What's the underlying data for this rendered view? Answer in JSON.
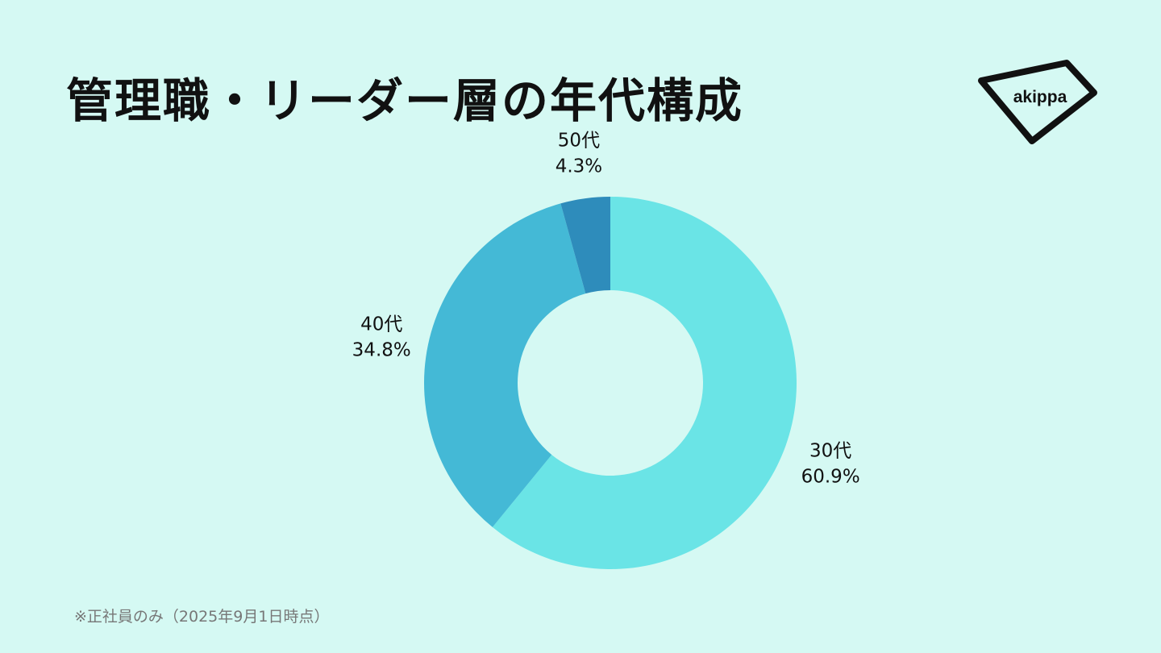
{
  "title": "管理職・リーダー層の年代構成",
  "logo_text": "akippa",
  "footnote": "※正社員のみ（2025年9月1日時点）",
  "chart_data": {
    "type": "pie",
    "donut": true,
    "title": "管理職・リーダー層の年代構成",
    "categories": [
      "30代",
      "40代",
      "50代"
    ],
    "values": [
      60.9,
      34.8,
      4.3
    ],
    "value_labels": [
      "60.9%",
      "34.8%",
      "4.3%"
    ],
    "colors": [
      "#6ae4e6",
      "#44b9d6",
      "#2e8cbb"
    ],
    "start": "top",
    "direction": "clockwise"
  }
}
